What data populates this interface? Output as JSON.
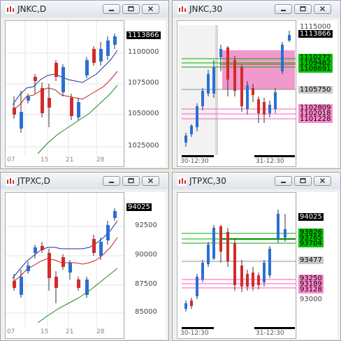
{
  "windows": [
    {
      "title": "JNKC,D",
      "price_ticks": [
        "1100000",
        "1075000",
        "1050000",
        "1025000"
      ],
      "price_tags": [
        {
          "text": "1113866",
          "bg": "#000000",
          "fg": "#ffffff"
        }
      ],
      "x_labels": [
        "07",
        "15",
        "21",
        "28"
      ]
    },
    {
      "title": "JNKC,30",
      "price_ticks": [
        "1115000",
        "1105750"
      ],
      "price_tags": [
        {
          "text": "1113866",
          "bg": "#000000",
          "fg": "#ffffff"
        },
        {
          "text": "1110272",
          "bg": "#00c000",
          "fg": "#000000"
        },
        {
          "text": "1109482",
          "bg": "#00c000",
          "fg": "#000000"
        },
        {
          "text": "1108691",
          "bg": "#00c000",
          "fg": "#000000"
        },
        {
          "text": "1105750",
          "bg": "#c8c8c8",
          "fg": "#000000"
        },
        {
          "text": "1102809",
          "bg": "#ff88cc",
          "fg": "#000000"
        },
        {
          "text": "1102018",
          "bg": "#ff88cc",
          "fg": "#000000"
        },
        {
          "text": "1101228",
          "bg": "#ff88cc",
          "fg": "#000000"
        }
      ],
      "x_labels": [
        "30-12:30",
        "31-12:30"
      ]
    },
    {
      "title": "JTPXC,D",
      "price_ticks": [
        "92500",
        "90000",
        "87500",
        "85000"
      ],
      "price_tags": [
        {
          "text": "94025",
          "bg": "#000000",
          "fg": "#ffffff"
        }
      ],
      "x_labels": [
        "07",
        "15",
        "21",
        "28"
      ]
    },
    {
      "title": "JTPXC,30",
      "price_ticks": [
        "93000"
      ],
      "price_tags": [
        {
          "text": "94025",
          "bg": "#000000",
          "fg": "#ffffff"
        },
        {
          "text": "93826",
          "bg": "#00c000",
          "fg": "#000000"
        },
        {
          "text": "93765",
          "bg": "#00c000",
          "fg": "#000000"
        },
        {
          "text": "93704",
          "bg": "#00c000",
          "fg": "#000000"
        },
        {
          "text": "93477",
          "bg": "#c8c8c8",
          "fg": "#000000"
        },
        {
          "text": "93250",
          "bg": "#ff88cc",
          "fg": "#000000"
        },
        {
          "text": "93189",
          "bg": "#ff88cc",
          "fg": "#000000"
        },
        {
          "text": "93128",
          "bg": "#ff88cc",
          "fg": "#000000"
        }
      ],
      "x_labels": [
        "30-12:30",
        "31-12:30"
      ]
    }
  ],
  "colors": {
    "bull": "#2a6fd6",
    "bear": "#d42a2a",
    "ma_short": "#1f2fa0",
    "ma_mid": "#c81e1e",
    "ma_long": "#1a8a1a",
    "green_line": "#00b000",
    "pink_line": "#ff5ab8",
    "pivot_line": "#909090"
  },
  "icons": [
    "chart-app-icon",
    "minimize-icon",
    "restore-icon",
    "close-icon"
  ]
}
